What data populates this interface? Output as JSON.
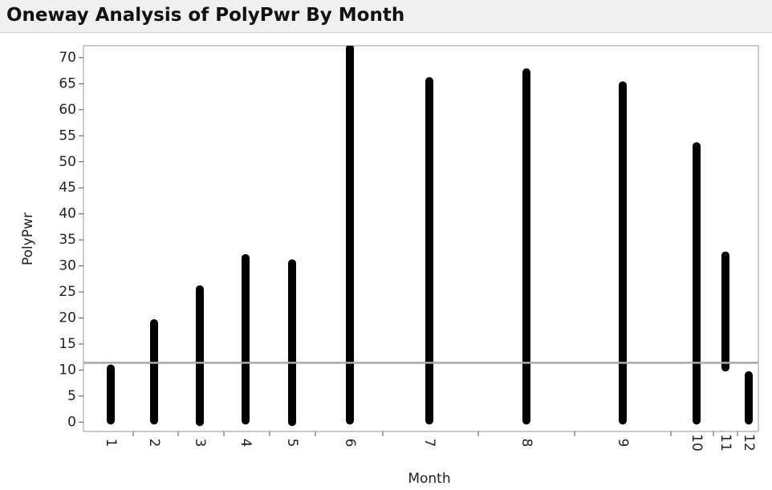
{
  "chart_data": {
    "type": "range",
    "title": "Oneway Analysis of PolyPwr By Month",
    "x_label": "Month",
    "y_label": "PolyPwr",
    "categories": [
      "1",
      "2",
      "3",
      "4",
      "5",
      "6",
      "7",
      "8",
      "9",
      "10",
      "11",
      "12"
    ],
    "low": [
      0.3,
      0.3,
      0,
      0.3,
      0,
      0.3,
      0.3,
      0.3,
      0.3,
      0.3,
      10.5,
      0.3
    ],
    "high": [
      10.3,
      19,
      25.5,
      31.5,
      30.5,
      71.8,
      65.5,
      67.2,
      64.7,
      53,
      32,
      9
    ],
    "mean": 11.4,
    "color": "#000000",
    "mean_color": "#aaaaaa",
    "ylim": [
      -1.8,
      72.3
    ],
    "yticks": [
      0,
      5,
      10,
      15,
      20,
      25,
      30,
      35,
      40,
      45,
      50,
      55,
      60,
      65,
      70
    ]
  }
}
